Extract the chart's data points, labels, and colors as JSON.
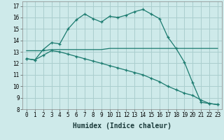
{
  "title": "",
  "xlabel": "Humidex (Indice chaleur)",
  "ylabel": "",
  "background_color": "#ceeaea",
  "grid_color": "#aacece",
  "line_color": "#1a7a6e",
  "ylim": [
    8,
    17.4
  ],
  "xlim": [
    -0.5,
    23.5
  ],
  "yticks": [
    8,
    9,
    10,
    11,
    12,
    13,
    14,
    15,
    16,
    17
  ],
  "xticks": [
    0,
    1,
    2,
    3,
    4,
    5,
    6,
    7,
    8,
    9,
    10,
    11,
    12,
    13,
    14,
    15,
    16,
    17,
    18,
    19,
    20,
    21,
    22,
    23
  ],
  "series1_x": [
    0,
    1,
    2,
    3,
    4,
    5,
    6,
    7,
    8,
    9,
    10,
    11,
    12,
    13,
    14,
    15,
    16,
    17,
    18,
    19,
    20,
    21,
    22,
    23
  ],
  "series1_y": [
    12.4,
    12.3,
    13.2,
    13.8,
    13.7,
    15.0,
    15.8,
    16.3,
    15.9,
    15.6,
    16.1,
    16.0,
    16.2,
    16.5,
    16.7,
    16.3,
    15.9,
    14.3,
    13.3,
    12.1,
    10.3,
    8.6,
    8.5,
    8.4
  ],
  "series2_x": [
    0,
    1,
    2,
    3,
    4,
    5,
    6,
    7,
    8,
    9,
    10,
    11,
    12,
    13,
    14,
    15,
    16,
    17,
    18,
    19,
    20,
    21,
    22,
    23
  ],
  "series2_y": [
    13.1,
    13.1,
    13.1,
    13.2,
    13.2,
    13.2,
    13.2,
    13.2,
    13.2,
    13.2,
    13.3,
    13.3,
    13.3,
    13.3,
    13.3,
    13.3,
    13.3,
    13.3,
    13.3,
    13.3,
    13.3,
    13.3,
    13.3,
    13.3
  ],
  "series3_x": [
    0,
    1,
    2,
    3,
    4,
    5,
    6,
    7,
    8,
    9,
    10,
    11,
    12,
    13,
    14,
    15,
    16,
    17,
    18,
    19,
    20,
    21,
    22,
    23
  ],
  "series3_y": [
    12.4,
    12.3,
    12.7,
    13.1,
    13.0,
    12.8,
    12.6,
    12.4,
    12.2,
    12.0,
    11.8,
    11.6,
    11.4,
    11.2,
    11.0,
    10.7,
    10.4,
    10.0,
    9.7,
    9.4,
    9.2,
    8.8,
    8.5,
    8.4
  ],
  "xtick_fontsize": 5.5,
  "ytick_fontsize": 6,
  "xlabel_fontsize": 7
}
